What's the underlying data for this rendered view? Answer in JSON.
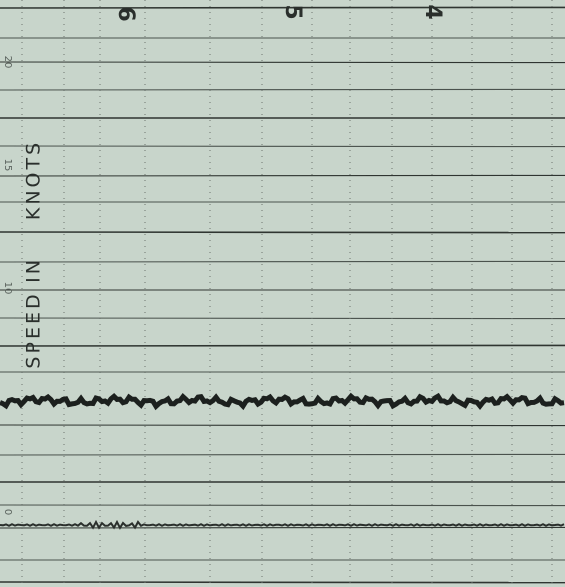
{
  "top_scale_labels": [
    "6",
    "5",
    "4"
  ],
  "left_scale_labels": [
    "20",
    "15",
    "10",
    "0"
  ],
  "axis_label": [
    "SPEED",
    "IN",
    "KNOTS"
  ]
}
